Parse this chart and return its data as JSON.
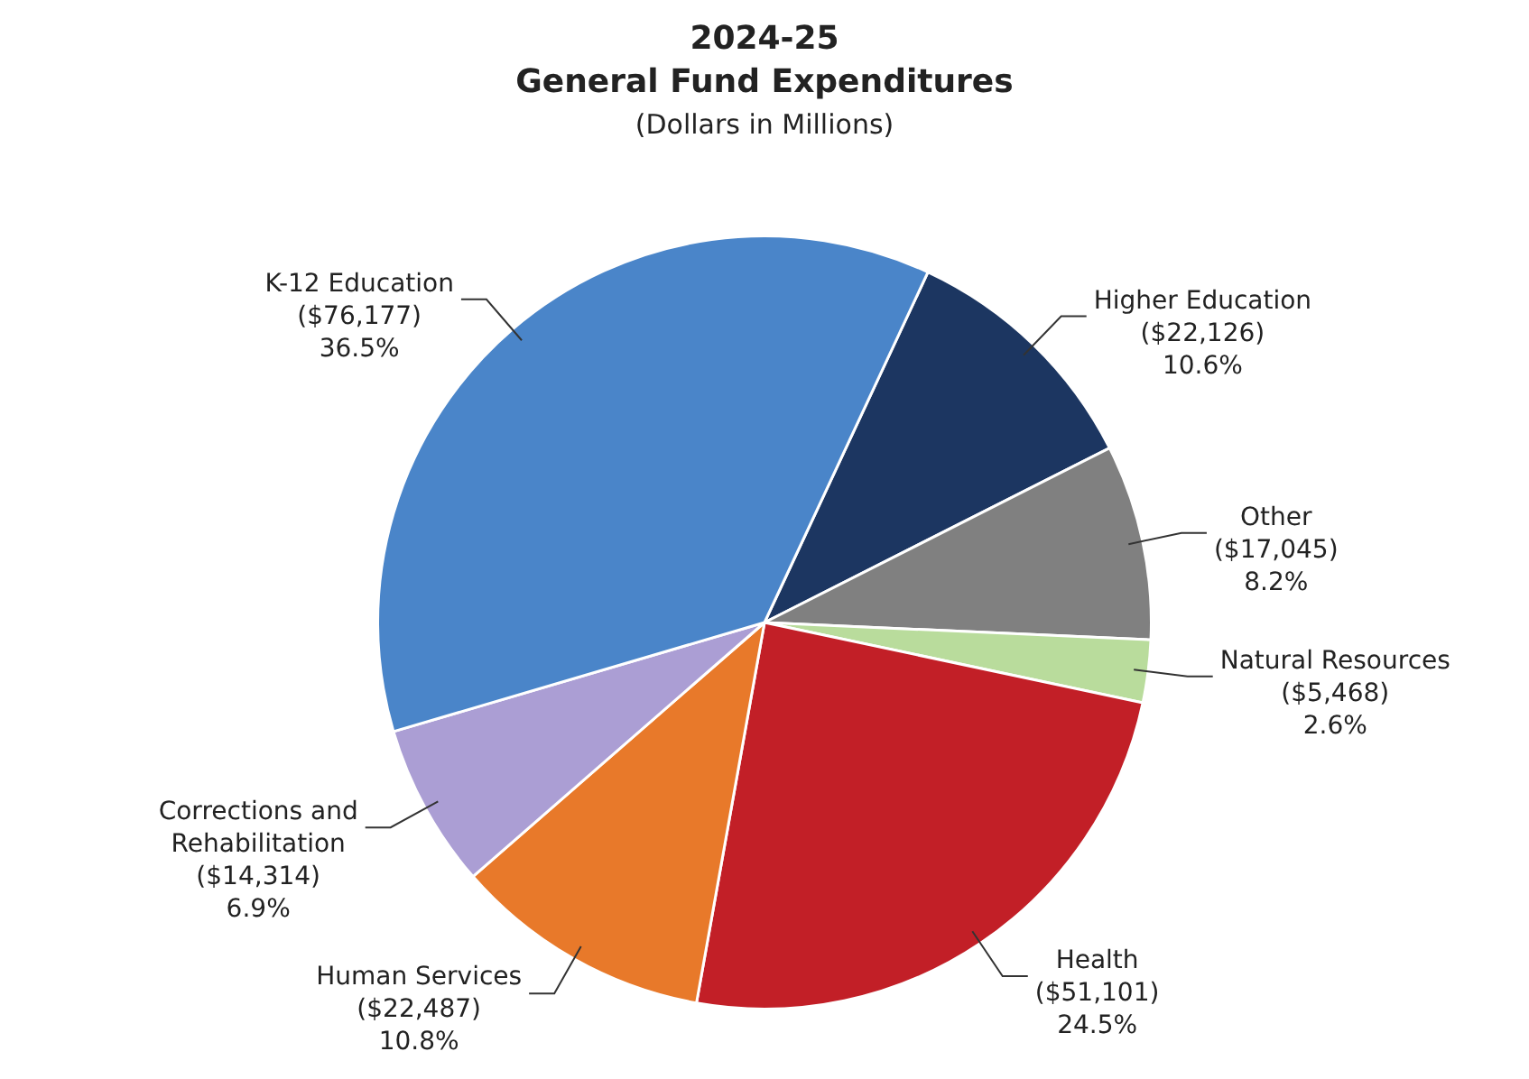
{
  "chart_data": {
    "type": "pie",
    "title": "2024-25\nGeneral Fund Expenditures",
    "subtitle": "(Dollars in Millions)",
    "categories": [
      "Higher Education",
      "Other",
      "Natural Resources",
      "Health",
      "Human Services",
      "Corrections and Rehabilitation",
      "K-12 Education"
    ],
    "values": [
      22126,
      17045,
      5468,
      51101,
      22487,
      14314,
      76177
    ],
    "value_labels": [
      "($22,126)\n10.6%",
      "($17,045)\n8.2%",
      "($5,468)\n2.6%",
      "($51,101)\n24.5%",
      "($22,487)\n10.8%",
      "($14,314)\n6.9%",
      "($76,177)\n36.5%"
    ],
    "colors": [
      "#1c3661",
      "#808080",
      "#b9dc9c",
      "#c21f27",
      "#e8792a",
      "#ab9ed4",
      "#4a85c9"
    ],
    "legend": false
  }
}
